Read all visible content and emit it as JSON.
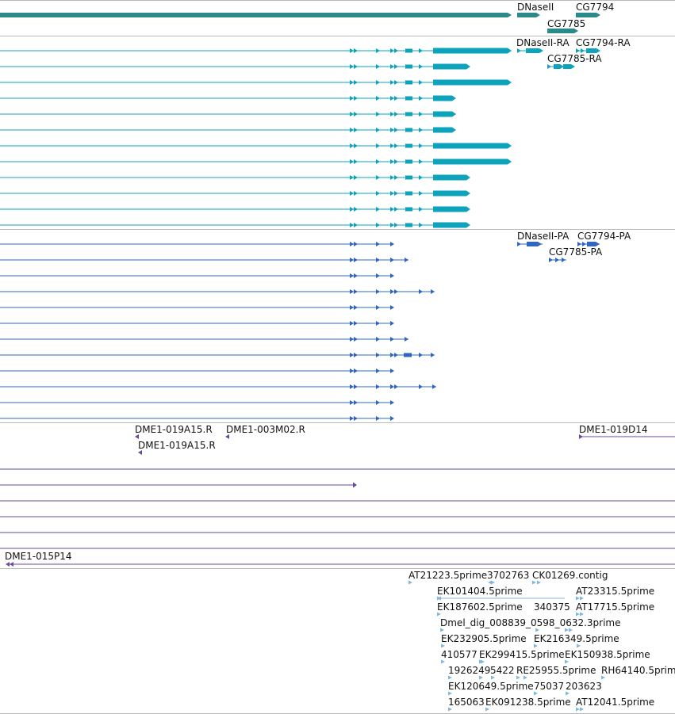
{
  "colors": {
    "gene": "#2a8a8a",
    "mrna": "#0ea3bd",
    "cds": "#2f64c9",
    "bac": "#6a4b9c",
    "est": "#7fb8dc",
    "divider": "#bbbbbb",
    "label": "#111111"
  },
  "gene_track": {
    "labels": [
      "DNaseII",
      "CG7794",
      "CG7785"
    ]
  },
  "mrna_track": {
    "labels": [
      "DNaseII-RA",
      "CG7794-RA",
      "CG7785-RA"
    ],
    "row_count": 12
  },
  "cds_track": {
    "labels": [
      "DNaseII-PA",
      "CG7794-PA",
      "CG7785-PA"
    ],
    "row_count": 12
  },
  "bac_track": {
    "labels": [
      "DME1-019A15.R",
      "DME1-003M02.R",
      "DME1-019D14",
      "DME1-019A15.R",
      "DME1-015P14"
    ]
  },
  "est_track": {
    "labels": [
      "AT21223.5prime",
      "3702763",
      "CK01269.contig",
      "EK101404.5prime",
      "AT23315.5prime",
      "EK187602.5prime",
      "340375",
      "AT17715.5prime",
      "Dmel_dig_008839_0598_0632.3prime",
      "EK232905.5prime",
      "EK216349.5prime",
      "410577",
      "EK299415.5prime",
      "EK150938.5prime",
      "1926249",
      "5422",
      "RE25955.5prime",
      "RH64140.5prime",
      "EK120649.5prime",
      "75037",
      "203623",
      "165063",
      "EK091238.5prime",
      "AT12041.5prime"
    ]
  }
}
